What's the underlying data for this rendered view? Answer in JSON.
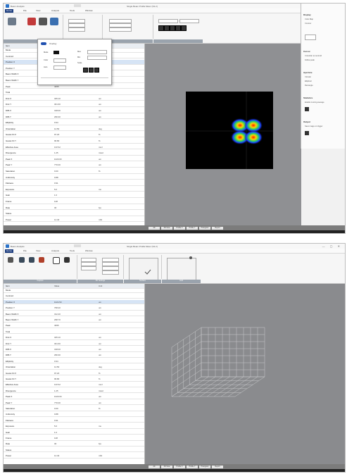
{
  "top": {
    "app_name": "Beam Analysis",
    "window_title": "Single Beam Profile Meter (S1.2)",
    "menu": [
      "Home",
      "File",
      "View",
      "Analysis",
      "Tools",
      "Window"
    ],
    "left_panel": {
      "header": {
        "col1": "Item",
        "col2": "Value",
        "col3": "Unit"
      },
      "rows": [
        {
          "c1": "Mode",
          "c2": "",
          "c3": ""
        },
        {
          "c1": "Centroid",
          "c2": "",
          "c3": ""
        },
        {
          "c1": "Position X",
          "c2": "1024.50",
          "c3": "um"
        },
        {
          "c1": "Position Y",
          "c2": "768.20",
          "c3": "um"
        },
        {
          "c1": "Beam Width X",
          "c2": "312.40",
          "c3": "um"
        },
        {
          "c1": "Beam Width Y",
          "c2": "298.70",
          "c3": "um"
        },
        {
          "c1": "Peak",
          "c2": "4095",
          "c3": ""
        },
        {
          "c1": "Total",
          "c2": "",
          "c3": ""
        },
        {
          "c1": "D4σ X",
          "c2": "325.10",
          "c3": "um"
        },
        {
          "c1": "D4σ Y",
          "c2": "301.60",
          "c3": "um"
        },
        {
          "c1": "D86 X",
          "c2": "318.00",
          "c3": "um"
        },
        {
          "c1": "D86 Y",
          "c2": "296.30",
          "c3": "um"
        },
        {
          "c1": "Ellipticity",
          "c2": "0.94",
          "c3": ""
        },
        {
          "c1": "Orientation",
          "c2": "12.50",
          "c3": "deg"
        },
        {
          "c1": "Gauss Fit X",
          "c2": "97.20",
          "c3": "%"
        },
        {
          "c1": "Gauss Fit Y",
          "c2": "96.80",
          "c3": "%"
        },
        {
          "c1": "Effective Area",
          "c2": "0.0712",
          "c3": "mm²"
        },
        {
          "c1": "Divergence",
          "c2": "1.25",
          "c3": "mrad"
        },
        {
          "c1": "Peak X",
          "c2": "1020.00",
          "c3": "um"
        },
        {
          "c1": "Peak Y",
          "c2": "770.00",
          "c3": "um"
        },
        {
          "c1": "Saturation",
          "c2": "0.00",
          "c3": "%"
        },
        {
          "c1": "Uniformity",
          "c2": "0.88",
          "c3": ""
        },
        {
          "c1": "Flatness",
          "c2": "0.91",
          "c3": ""
        },
        {
          "c1": "Exposure",
          "c2": "5.0",
          "c3": "ms"
        },
        {
          "c1": "Gain",
          "c2": "1.0",
          "c3": ""
        },
        {
          "c1": "Frame",
          "c2": "128",
          "c3": ""
        },
        {
          "c1": "Rate",
          "c2": "30",
          "c3": "fps"
        },
        {
          "c1": "Status",
          "c2": "",
          "c3": ""
        },
        {
          "c1": "Power",
          "c2": "12.40",
          "c3": "mW"
        }
      ]
    },
    "dropdown": {
      "title": "Overlay",
      "items": [
        "Mode",
        "Color",
        "Auto",
        "Max",
        "Min",
        "Scale"
      ]
    },
    "right_panel": {
      "sections": [
        {
          "title": "Display",
          "items": [
            "Color Map",
            "Contour"
          ]
        },
        {
          "title": "Cursor",
          "items": [
            "Crosshair at centroid",
            "Follow peak"
          ]
        },
        {
          "title": "Aperture",
          "items": [
            "Circular",
            "Elliptical",
            "Rectangle"
          ]
        },
        {
          "title": "Statistics",
          "items": [
            "Enable running average"
          ]
        },
        {
          "title": "Output",
          "items": [
            "Save image on trigger"
          ]
        }
      ]
    },
    "status_tabs": [
      "2D",
      "3D View",
      "Profile X",
      "Profile Y",
      "Histogram",
      "Report"
    ]
  },
  "bottom": {
    "app_name": "Beam Analysis",
    "window_title": "Single Beam Profile Meter (S1.2)",
    "menu": [
      "Home",
      "File",
      "View",
      "Analysis",
      "Tools",
      "Window"
    ],
    "ribbon_groups": [
      "Capture",
      "3D Settings",
      "Surface",
      "Grid"
    ],
    "status_tabs": [
      "2D",
      "3D View",
      "Profile X",
      "Profile Y",
      "Histogram",
      "Report"
    ]
  },
  "colors": {
    "accent": "#1f3f80",
    "viewer_bg": "#8f9093",
    "plot_bg": "#000000",
    "panel_bg": "#ffffff"
  }
}
